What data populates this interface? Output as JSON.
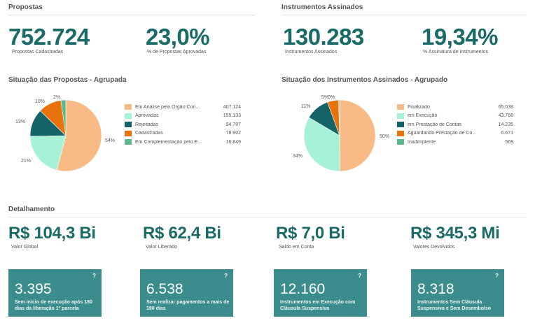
{
  "propostas": {
    "title": "Propostas",
    "kpi1": {
      "value": "752.724",
      "label": "Propostas Cadastradas"
    },
    "kpi2": {
      "value": "23,0%",
      "label": "% de Propostas Aprovadas"
    },
    "chart_title": "Situação das Propostas - Agrupada",
    "legend": [
      {
        "label": "Em Análise pelo Órgão Con...",
        "value": "407.124"
      },
      {
        "label": "Aprovadas",
        "value": "155.133"
      },
      {
        "label": "Rejeitadas",
        "value": "94.707"
      },
      {
        "label": "Cadastradas",
        "value": "78.902"
      },
      {
        "label": "Em Complementação pelo E...",
        "value": "16.849"
      }
    ],
    "pct_labels": [
      "54%",
      "21%",
      "13%",
      "10%",
      "2%"
    ]
  },
  "instrumentos": {
    "title": "Instrumentos Assinados",
    "kpi1": {
      "value": "130.283",
      "label": "Instrumentos Assinados"
    },
    "kpi2": {
      "value": "19,34%",
      "label": "% Assinatura de Instrumentos"
    },
    "chart_title": "Situação dos Instrumentos Assinados - Agrupado",
    "legend": [
      {
        "label": "Finalizado",
        "value": "65.038"
      },
      {
        "label": "em Execução",
        "value": "43.768"
      },
      {
        "label": "em Prestação de Contas",
        "value": "14.235"
      },
      {
        "label": "Aguardando Prestação de Co...",
        "value": "6.671"
      },
      {
        "label": "Inadimplente",
        "value": "569"
      }
    ],
    "pct_labels": [
      "50%",
      "34%",
      "11%",
      "5%",
      "0%"
    ]
  },
  "detalhamento": {
    "title": "Detalhamento",
    "items": [
      {
        "value": "R$ 104,3 Bi",
        "label": "Valor Global"
      },
      {
        "value": "R$ 62,4 Bi",
        "label": "Valor Liberado"
      },
      {
        "value": "R$ 7,0 Bi",
        "label": "Saldo em Conta"
      },
      {
        "value": "R$ 345,3 Mi",
        "label": "Valores Devolvidos"
      }
    ]
  },
  "cards": [
    {
      "value": "3.395",
      "desc": "Sem início de execução após 180 dias da liberação 1ª parcela",
      "help": "?"
    },
    {
      "value": "6.538",
      "desc": "Sem realizar pagamentos a mais de 180 dias",
      "help": "?"
    },
    {
      "value": "12.160",
      "desc": "Instrumentos em Execução com Cláusula Suspensiva",
      "help": "?"
    },
    {
      "value": "8.318",
      "desc": "Instrumentos Sem Cláusula Suspensiva e Sem Desembolso",
      "help": "?"
    }
  ],
  "colors": [
    "#f9bb86",
    "#a6f2d8",
    "#146366",
    "#e8720c",
    "#5cb88e"
  ],
  "chart_data": [
    {
      "type": "pie",
      "title": "Situação das Propostas - Agrupada",
      "categories": [
        "Em Análise pelo Órgão Con...",
        "Aprovadas",
        "Rejeitadas",
        "Cadastradas",
        "Em Complementação pelo E..."
      ],
      "values": [
        407124,
        155133,
        94707,
        78902,
        16849
      ]
    },
    {
      "type": "pie",
      "title": "Situação dos Instrumentos Assinados - Agrupado",
      "categories": [
        "Finalizado",
        "em Execução",
        "em Prestação de Contas",
        "Aguardando Prestação de Co...",
        "Inadimplente"
      ],
      "values": [
        65038,
        43768,
        14235,
        6671,
        569
      ]
    }
  ]
}
